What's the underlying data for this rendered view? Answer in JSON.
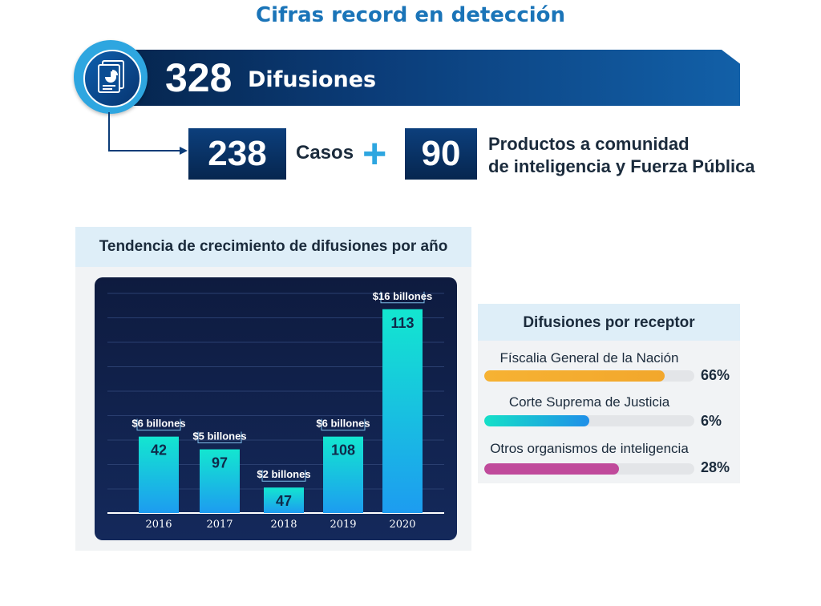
{
  "title": "Cifras record en detección",
  "summary": {
    "total_number": "328",
    "total_label": "Difusiones",
    "casos_number": "238",
    "casos_label": "Casos",
    "plus": "+",
    "productos_number": "90",
    "productos_label_line1": "Productos a comunidad",
    "productos_label_line2": "de inteligencia y Fuerza Pública"
  },
  "colors": {
    "title_blue": "#1a74b8",
    "navy": "#06264f",
    "accent_cyan": "#2ea6e0",
    "bar_top": "#13e6d0",
    "bar_bottom": "#1d9cf0",
    "orange": "#f2a72c",
    "teal_blue": "#22b6e0",
    "magenta": "#c04a9b"
  },
  "chart_data": {
    "type": "bar",
    "title": "Tendencia de crecimiento de difusiones por año",
    "categories": [
      "2016",
      "2017",
      "2018",
      "2019",
      "2020"
    ],
    "values": [
      42,
      97,
      47,
      108,
      113
    ],
    "value_labels": [
      "42",
      "97",
      "47",
      "108",
      "113"
    ],
    "annotations": [
      "$6 billones",
      "$5 billones",
      "$2 billones",
      "$6 billones",
      "$16 billones"
    ],
    "annotation_values": [
      6,
      5,
      2,
      6,
      16
    ],
    "bar_height_basis": "annotation_values",
    "ylim": [
      0,
      18
    ],
    "grid": true
  },
  "receptor": {
    "title": "Difusiones por receptor",
    "items": [
      {
        "label": "Físcalia General de la Nación",
        "percent": "66%",
        "value": 0.86,
        "color_top": "#f6b233",
        "color": "#f2a72c"
      },
      {
        "label": "Corte Suprema de Justicia",
        "percent": "6%",
        "value": 0.5,
        "color_top": "#15e0c8",
        "color": "#1f8fe8"
      },
      {
        "label": "Otros organismos de inteligencia",
        "percent": "28%",
        "value": 0.64,
        "color_top": "#c04a9b",
        "color": "#c04a9b"
      }
    ]
  }
}
